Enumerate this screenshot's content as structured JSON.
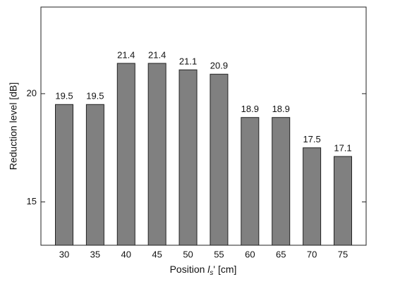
{
  "chart_data": {
    "type": "bar",
    "ylabel": "Reduction level [dB]",
    "xlabel": {
      "text": "Position ",
      "var": "l",
      "sub": "s",
      "suffix": "' [cm]"
    },
    "categories": [
      "30",
      "35",
      "40",
      "45",
      "50",
      "55",
      "60",
      "65",
      "70",
      "75"
    ],
    "values": [
      19.5,
      19.5,
      21.4,
      21.4,
      21.1,
      20.9,
      18.9,
      18.9,
      17.5,
      17.1
    ],
    "color": "#808080",
    "ylim": [
      13,
      24
    ],
    "yticks": [
      15,
      20
    ],
    "grid": false
  }
}
